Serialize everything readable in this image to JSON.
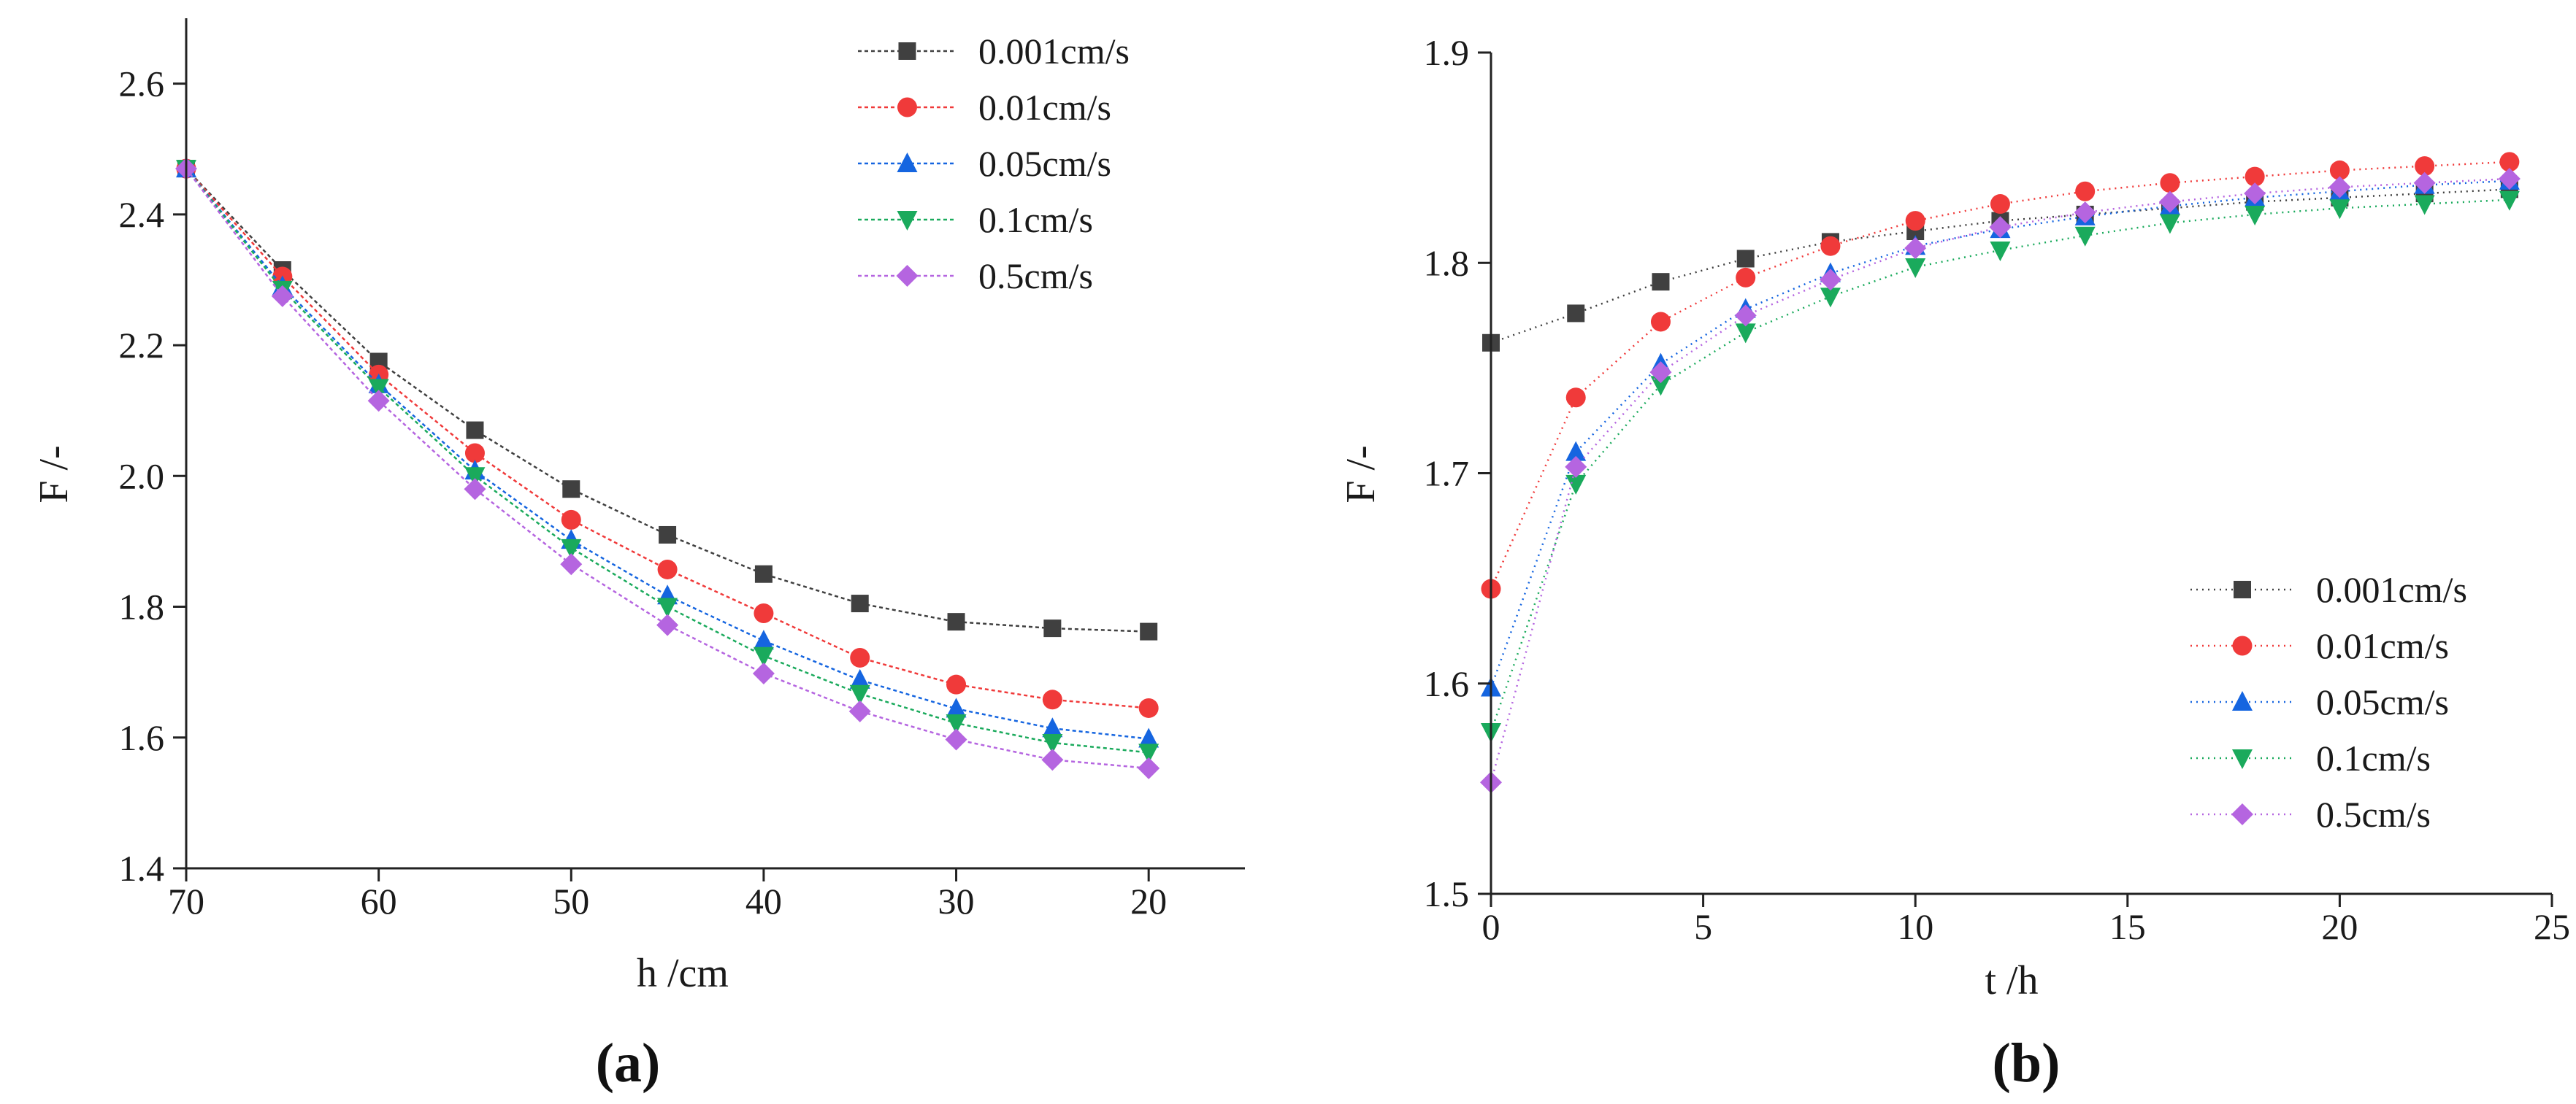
{
  "chart_data": [
    {
      "type": "line",
      "panel_label": "(a)",
      "xlabel": "h /cm",
      "ylabel": "F /-",
      "xlim": [
        70,
        15
      ],
      "ylim": [
        1.4,
        2.7
      ],
      "x_ticks": [
        70,
        60,
        50,
        40,
        30,
        20
      ],
      "y_ticks": [
        1.4,
        1.6,
        1.8,
        2.0,
        2.2,
        2.4,
        2.6
      ],
      "x_tick_labels": [
        "70",
        "60",
        "50",
        "40",
        "30",
        "20"
      ],
      "y_tick_labels": [
        "1.4",
        "1.6",
        "1.8",
        "2.0",
        "2.2",
        "2.4",
        "2.6"
      ],
      "legend_position": "top-right",
      "x": [
        70,
        65,
        60,
        55,
        50,
        45,
        40,
        35,
        30,
        25,
        20
      ],
      "series": [
        {
          "name": "0.001cm/s",
          "marker": "square",
          "color": "#404040",
          "values": [
            2.47,
            2.315,
            2.175,
            2.07,
            1.98,
            1.91,
            1.85,
            1.805,
            1.777,
            1.767,
            1.762
          ]
        },
        {
          "name": "0.01cm/s",
          "marker": "circle",
          "color": "#f03a3a",
          "values": [
            2.47,
            2.305,
            2.155,
            2.035,
            1.933,
            1.857,
            1.79,
            1.722,
            1.681,
            1.658,
            1.645
          ]
        },
        {
          "name": "0.05cm/s",
          "marker": "triangle-up",
          "color": "#1565e0",
          "values": [
            2.47,
            2.29,
            2.14,
            2.008,
            1.902,
            1.817,
            1.748,
            1.688,
            1.644,
            1.614,
            1.598
          ]
        },
        {
          "name": "0.1cm/s",
          "marker": "triangle-down",
          "color": "#1aaa5c",
          "values": [
            2.47,
            2.285,
            2.135,
            2.0,
            1.89,
            1.8,
            1.725,
            1.667,
            1.622,
            1.592,
            1.577
          ]
        },
        {
          "name": "0.5cm/s",
          "marker": "diamond",
          "color": "#b565e0",
          "values": [
            2.47,
            2.275,
            2.115,
            1.98,
            1.865,
            1.772,
            1.698,
            1.64,
            1.597,
            1.566,
            1.553
          ]
        }
      ]
    },
    {
      "type": "line",
      "panel_label": "(b)",
      "xlabel": "t /h",
      "ylabel": "F /-",
      "xlim": [
        0,
        25
      ],
      "ylim": [
        1.5,
        1.9
      ],
      "x_ticks": [
        0,
        5,
        10,
        15,
        20,
        25
      ],
      "y_ticks": [
        1.5,
        1.6,
        1.7,
        1.8,
        1.9
      ],
      "x_tick_labels": [
        "0",
        "5",
        "10",
        "15",
        "20",
        "25"
      ],
      "y_tick_labels": [
        "1.5",
        "1.6",
        "1.7",
        "1.8",
        "1.9"
      ],
      "legend_position": "bottom-right",
      "x": [
        0,
        2,
        4,
        6,
        8,
        10,
        12,
        14,
        16,
        18,
        20,
        22,
        24
      ],
      "series": [
        {
          "name": "0.001cm/s",
          "marker": "square",
          "color": "#404040",
          "values": [
            1.762,
            1.776,
            1.791,
            1.802,
            1.81,
            1.815,
            1.82,
            1.823,
            1.826,
            1.829,
            1.831,
            1.833,
            1.835
          ]
        },
        {
          "name": "0.01cm/s",
          "marker": "circle",
          "color": "#f03a3a",
          "values": [
            1.645,
            1.736,
            1.772,
            1.793,
            1.808,
            1.82,
            1.828,
            1.834,
            1.838,
            1.841,
            1.844,
            1.846,
            1.848
          ]
        },
        {
          "name": "0.05cm/s",
          "marker": "triangle-up",
          "color": "#1565e0",
          "values": [
            1.598,
            1.71,
            1.752,
            1.778,
            1.795,
            1.808,
            1.816,
            1.822,
            1.827,
            1.831,
            1.834,
            1.837,
            1.839
          ]
        },
        {
          "name": "0.1cm/s",
          "marker": "triangle-down",
          "color": "#1aaa5c",
          "values": [
            1.577,
            1.695,
            1.742,
            1.767,
            1.784,
            1.798,
            1.806,
            1.813,
            1.819,
            1.823,
            1.826,
            1.828,
            1.83
          ]
        },
        {
          "name": "0.5cm/s",
          "marker": "diamond",
          "color": "#b565e0",
          "values": [
            1.553,
            1.703,
            1.748,
            1.775,
            1.792,
            1.807,
            1.817,
            1.824,
            1.829,
            1.833,
            1.836,
            1.838,
            1.84
          ]
        }
      ]
    }
  ]
}
